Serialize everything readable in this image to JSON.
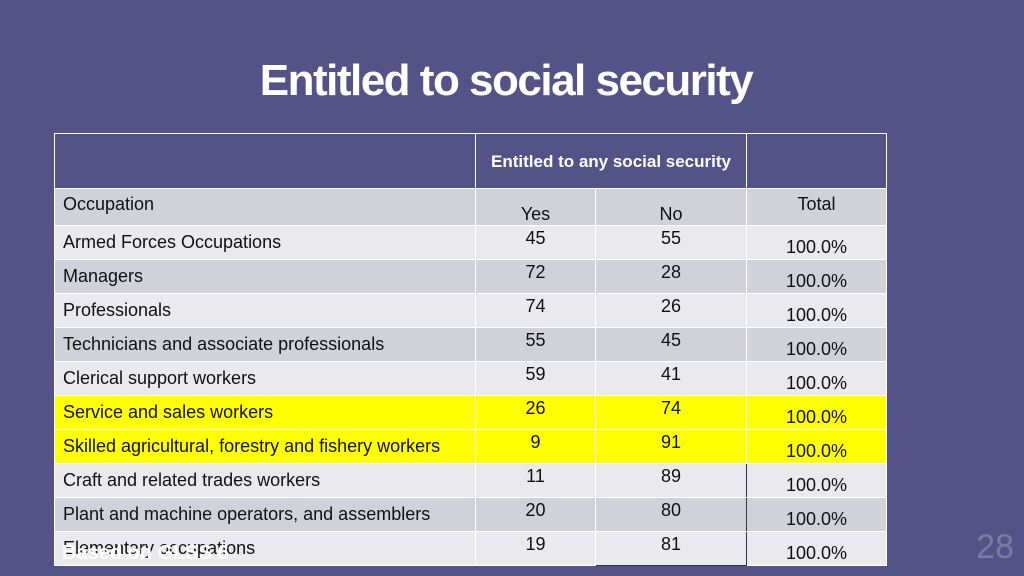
{
  "slide": {
    "title": "Entitled to social security",
    "footnote": "Based on GLSS 6",
    "page_number": "28"
  },
  "table": {
    "group_header": "Entitled to any social security",
    "columns": {
      "occupation": "Occupation",
      "yes": "Yes",
      "no": "No",
      "total": "Total"
    },
    "rows": [
      {
        "occupation": "Armed Forces Occupations",
        "yes": "45",
        "no": "55",
        "total": "100.0%"
      },
      {
        "occupation": "Managers",
        "yes": "72",
        "no": "28",
        "total": "100.0%"
      },
      {
        "occupation": "Professionals",
        "yes": "74",
        "no": "26",
        "total": "100.0%"
      },
      {
        "occupation": "Technicians and associate professionals",
        "yes": "55",
        "no": "45",
        "total": "100.0%"
      },
      {
        "occupation": "Clerical support workers",
        "yes": "59",
        "no": "41",
        "total": "100.0%"
      },
      {
        "occupation": "Service and sales workers",
        "yes": "26",
        "no": "74",
        "total": "100.0%"
      },
      {
        "occupation": "Skilled agricultural, forestry and fishery workers",
        "yes": "9",
        "no": "91",
        "total": "100.0%"
      },
      {
        "occupation": "Craft and related trades workers",
        "yes": "11",
        "no": "89",
        "total": "100.0%"
      },
      {
        "occupation": "Plant and machine operators, and assemblers",
        "yes": "20",
        "no": "80",
        "total": "100.0%"
      },
      {
        "occupation": "Elementary occupations",
        "yes": "19",
        "no": "81",
        "total": "100.0%"
      }
    ]
  },
  "colors": {
    "background": "#555287",
    "highlight": "#ffff00",
    "band_light": "#e9e9ee",
    "band_dark": "#d1d1da"
  }
}
